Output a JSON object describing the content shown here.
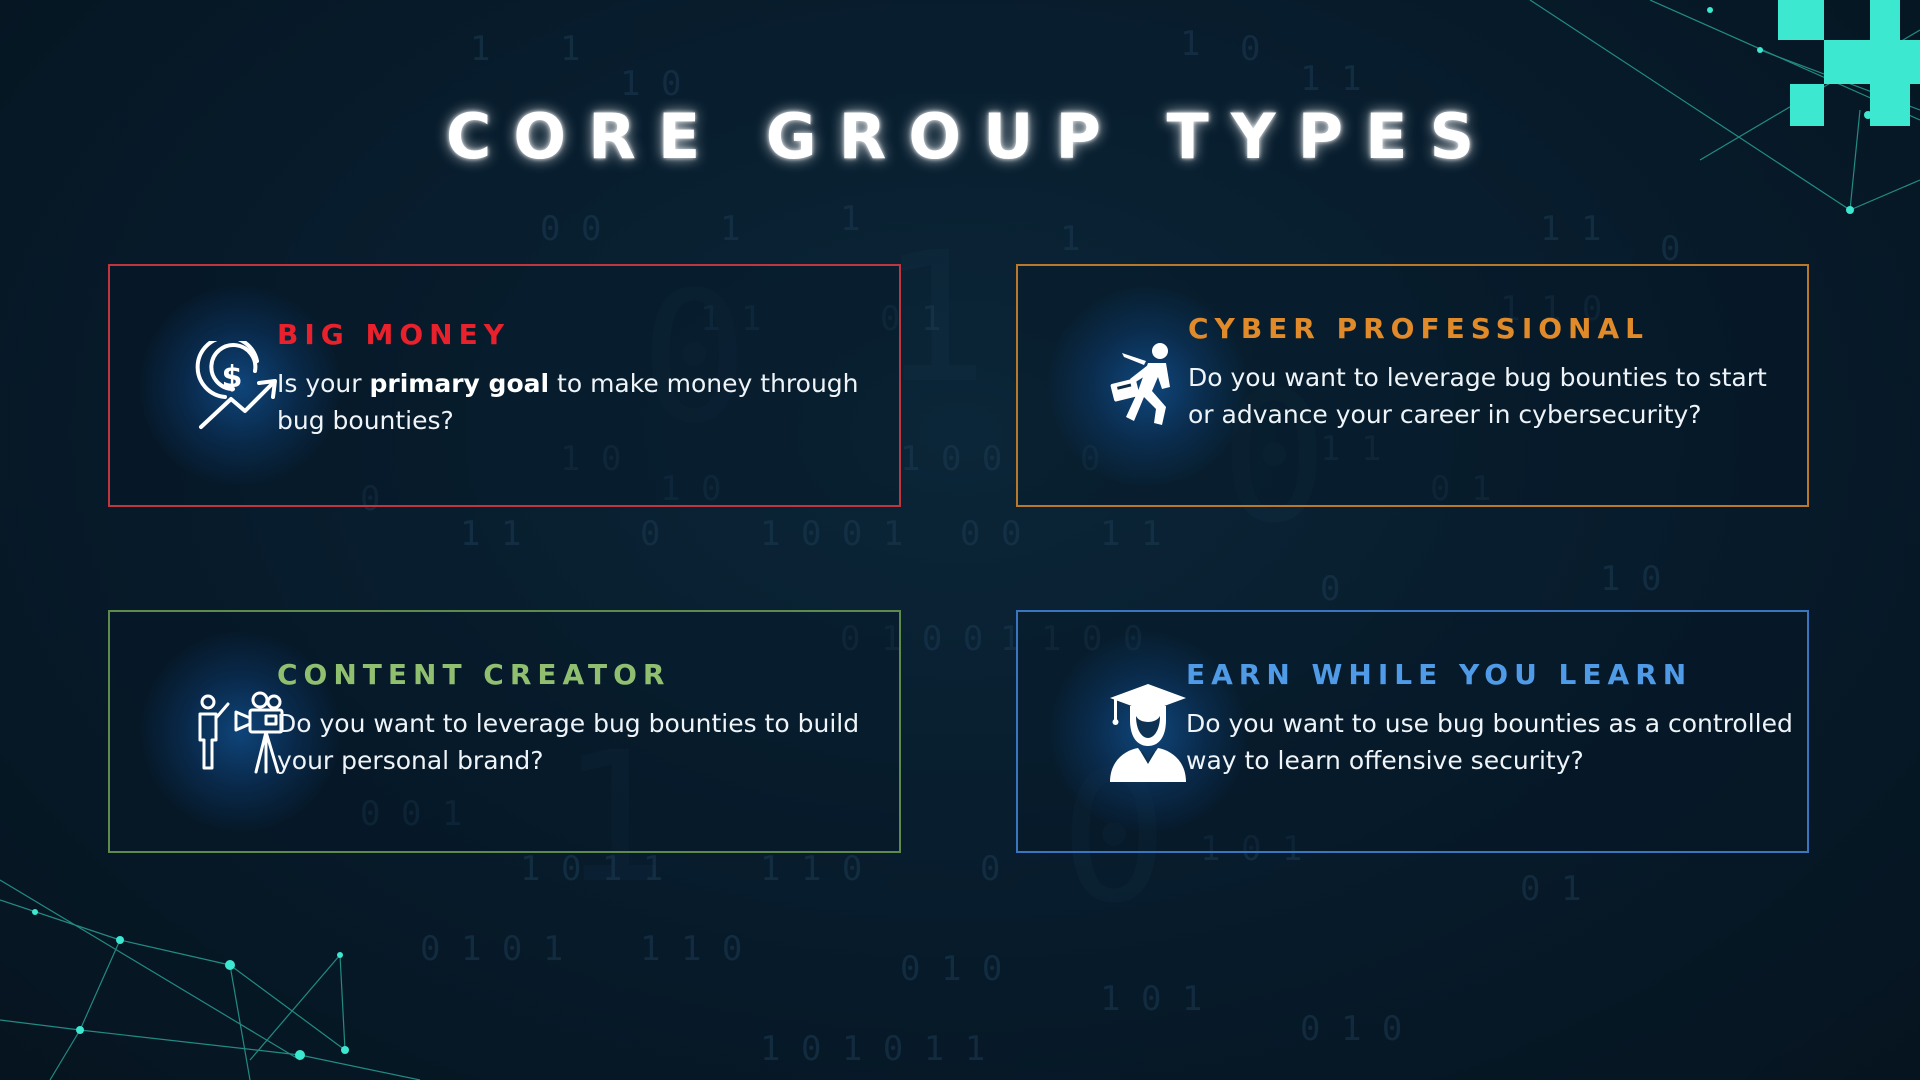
{
  "title": "CORE GROUP TYPES",
  "cards": [
    {
      "heading": "BIG MONEY",
      "heading_color": "#e8212c",
      "border_color": "#c0363f",
      "icon": "dollar-growth-icon",
      "desc_pre": "Is your ",
      "desc_bold": "primary goal",
      "desc_post": " to make money through bug bounties?"
    },
    {
      "heading": "CYBER PROFESSIONAL",
      "heading_color": "#e08a2a",
      "border_color": "#b9782a",
      "icon": "businessman-walking-icon",
      "desc": "Do you want to leverage bug bounties to start or advance your career in cybersecurity?"
    },
    {
      "heading": "CONTENT CREATOR",
      "heading_color": "#8fbf6f",
      "border_color": "#5e8a4d",
      "icon": "video-camera-presenter-icon",
      "desc": "Do you want to leverage bug bounties to build your personal brand?"
    },
    {
      "heading": "EARN WHILE YOU LEARN",
      "heading_color": "#4f9be8",
      "border_color": "#3b75c0",
      "icon": "graduate-icon",
      "desc": "Do you want to use bug bounties as a controlled way to learn offensive security?"
    }
  ],
  "colors": {
    "background": "#071a2a",
    "accent_teal": "#3de8d0"
  }
}
